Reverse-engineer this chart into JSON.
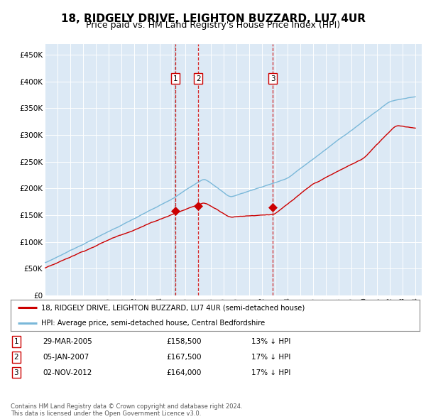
{
  "title": "18, RIDGELY DRIVE, LEIGHTON BUZZARD, LU7 4UR",
  "subtitle": "Price paid vs. HM Land Registry's House Price Index (HPI)",
  "title_fontsize": 11,
  "subtitle_fontsize": 9,
  "plot_bg_color": "#dce9f5",
  "grid_color": "#ffffff",
  "ylim": [
    0,
    470000
  ],
  "yticks": [
    0,
    50000,
    100000,
    150000,
    200000,
    250000,
    300000,
    350000,
    400000,
    450000
  ],
  "ytick_labels": [
    "£0",
    "£50K",
    "£100K",
    "£150K",
    "£200K",
    "£250K",
    "£300K",
    "£350K",
    "£400K",
    "£450K"
  ],
  "sale_years": [
    2005.24,
    2007.02,
    2012.84
  ],
  "sale_prices": [
    158500,
    167500,
    164000
  ],
  "sale_labels": [
    "1",
    "2",
    "3"
  ],
  "hpi_color": "#7ab8d9",
  "price_color": "#cc0000",
  "footer": "Contains HM Land Registry data © Crown copyright and database right 2024.\nThis data is licensed under the Open Government Licence v3.0.",
  "legend_label_price": "18, RIDGELY DRIVE, LEIGHTON BUZZARD, LU7 4UR (semi-detached house)",
  "legend_label_hpi": "HPI: Average price, semi-detached house, Central Bedfordshire",
  "table_rows": [
    [
      "1",
      "29-MAR-2005",
      "£158,500",
      "13% ↓ HPI"
    ],
    [
      "2",
      "05-JAN-2007",
      "£167,500",
      "17% ↓ HPI"
    ],
    [
      "3",
      "02-NOV-2012",
      "£164,000",
      "17% ↓ HPI"
    ]
  ]
}
